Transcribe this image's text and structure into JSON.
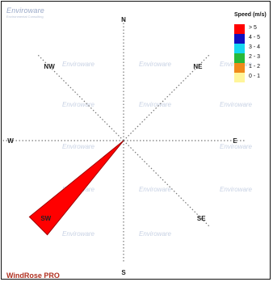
{
  "watermark": {
    "name": "Enviroware",
    "tagline": "Environmental Consulting"
  },
  "footer": {
    "brand": "WindRose PRO"
  },
  "legend": {
    "title": "Speed (m/s)",
    "items": [
      {
        "label": "> 5",
        "color": "#ff0000"
      },
      {
        "label": "4 - 5",
        "color": "#1010c0"
      },
      {
        "label": "3 - 4",
        "color": "#17d7f0"
      },
      {
        "label": "2 - 3",
        "color": "#27b93a"
      },
      {
        "label": "1 - 2",
        "color": "#f08a1a"
      },
      {
        "label": "0 - 1",
        "color": "#fff59a"
      }
    ]
  },
  "chart_data": {
    "type": "windrose",
    "directions": [
      "N",
      "NE",
      "E",
      "SE",
      "S",
      "SW",
      "W",
      "NW"
    ],
    "speed_bins": [
      "0 - 1",
      "1 - 2",
      "2 - 3",
      "3 - 4",
      "4 - 5",
      "> 5"
    ],
    "petals": [
      {
        "direction": "SW",
        "bin": "> 5",
        "frequency": 1.0
      }
    ],
    "grid": "dotted",
    "legend_position": "top-right"
  }
}
